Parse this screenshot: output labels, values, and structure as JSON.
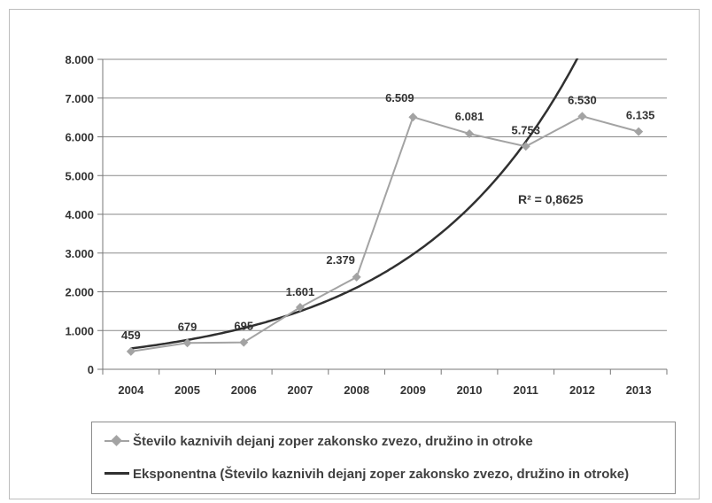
{
  "chart_data": {
    "type": "line",
    "categories": [
      "2004",
      "2005",
      "2006",
      "2007",
      "2008",
      "2009",
      "2010",
      "2011",
      "2012",
      "2013"
    ],
    "series": [
      {
        "name": "Število kaznivih dejanj zoper zakonsko zvezo, družino in otroke",
        "values": [
          459,
          679,
          695,
          1601,
          2379,
          6509,
          6081,
          5753,
          6530,
          6135
        ],
        "labels": [
          "459",
          "679",
          "695",
          "1.601",
          "2.379",
          "6.509",
          "6.081",
          "5.753",
          "6.530",
          "6.135"
        ],
        "color": "#a3a3a3",
        "marker": "diamond"
      },
      {
        "name": "Eksponentna (Število kaznivih dejanj zoper zakonsko zvezo, družino in otroke)",
        "trendline": "exponential",
        "base_value": 538,
        "growth_rate": 0.3415,
        "color": "#303030"
      }
    ],
    "y_ticks": [
      "0",
      "1.000",
      "2.000",
      "3.000",
      "4.000",
      "5.000",
      "6.000",
      "7.000",
      "8.000"
    ],
    "ylim": [
      0,
      8000
    ],
    "grid": true,
    "annotation": "R² = 0,8625",
    "legend_position": "bottom",
    "xlabel": "",
    "ylabel": ""
  }
}
